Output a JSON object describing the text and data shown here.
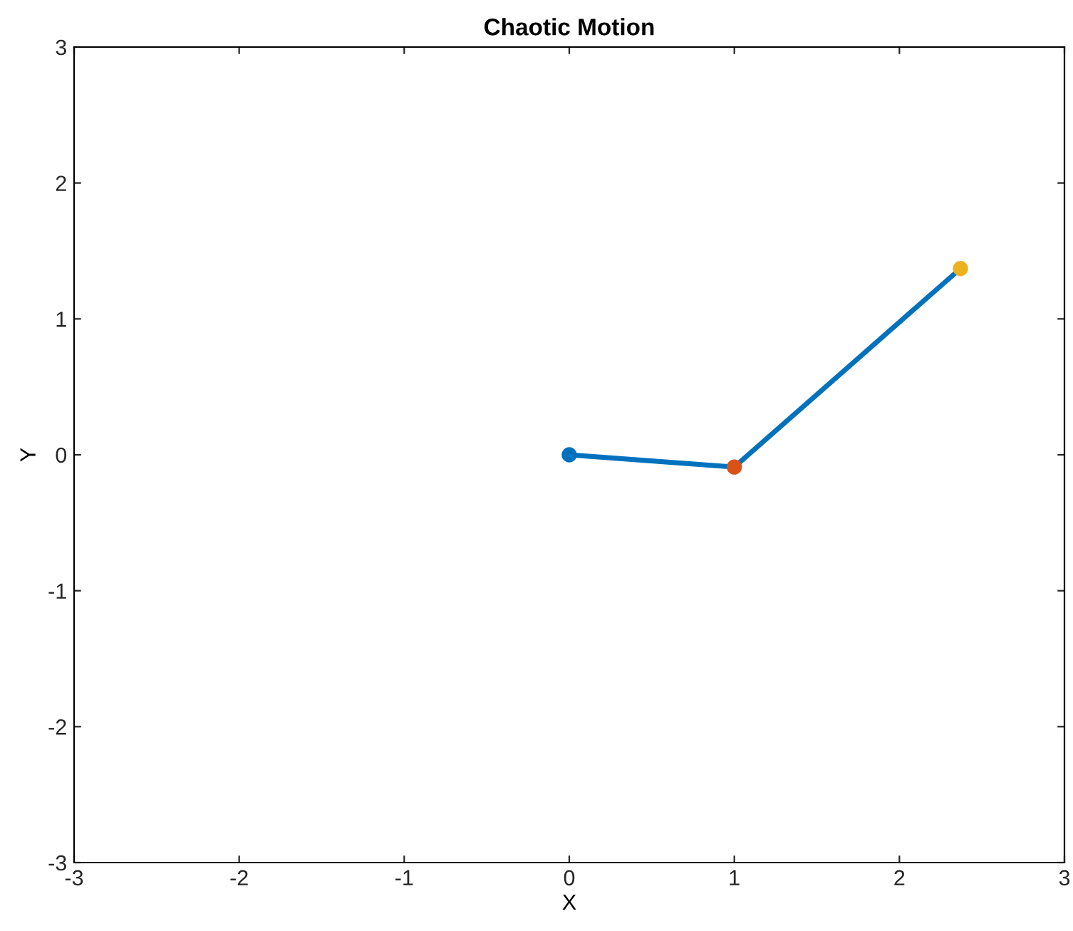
{
  "chart_data": {
    "type": "line",
    "title": "Chaotic Motion",
    "xlabel": "X",
    "ylabel": "Y",
    "xlim": [
      -3,
      3
    ],
    "ylim": [
      -3,
      3
    ],
    "xticks": [
      -3,
      -2,
      -1,
      0,
      1,
      2,
      3
    ],
    "yticks": [
      -3,
      -2,
      -1,
      0,
      1,
      2,
      3
    ],
    "grid": false,
    "series": [
      {
        "x": [
          0,
          1,
          2.37
        ],
        "values": [
          0,
          -0.09,
          1.37
        ],
        "color": "#0072bd",
        "line_style": "solid"
      },
      {
        "type": "scatter",
        "x": [
          0,
          1,
          2.37
        ],
        "values": [
          0,
          -0.09,
          1.37
        ],
        "colors": [
          "#0072bd",
          "#d95319",
          "#edb120"
        ],
        "marker": "circle"
      }
    ]
  }
}
